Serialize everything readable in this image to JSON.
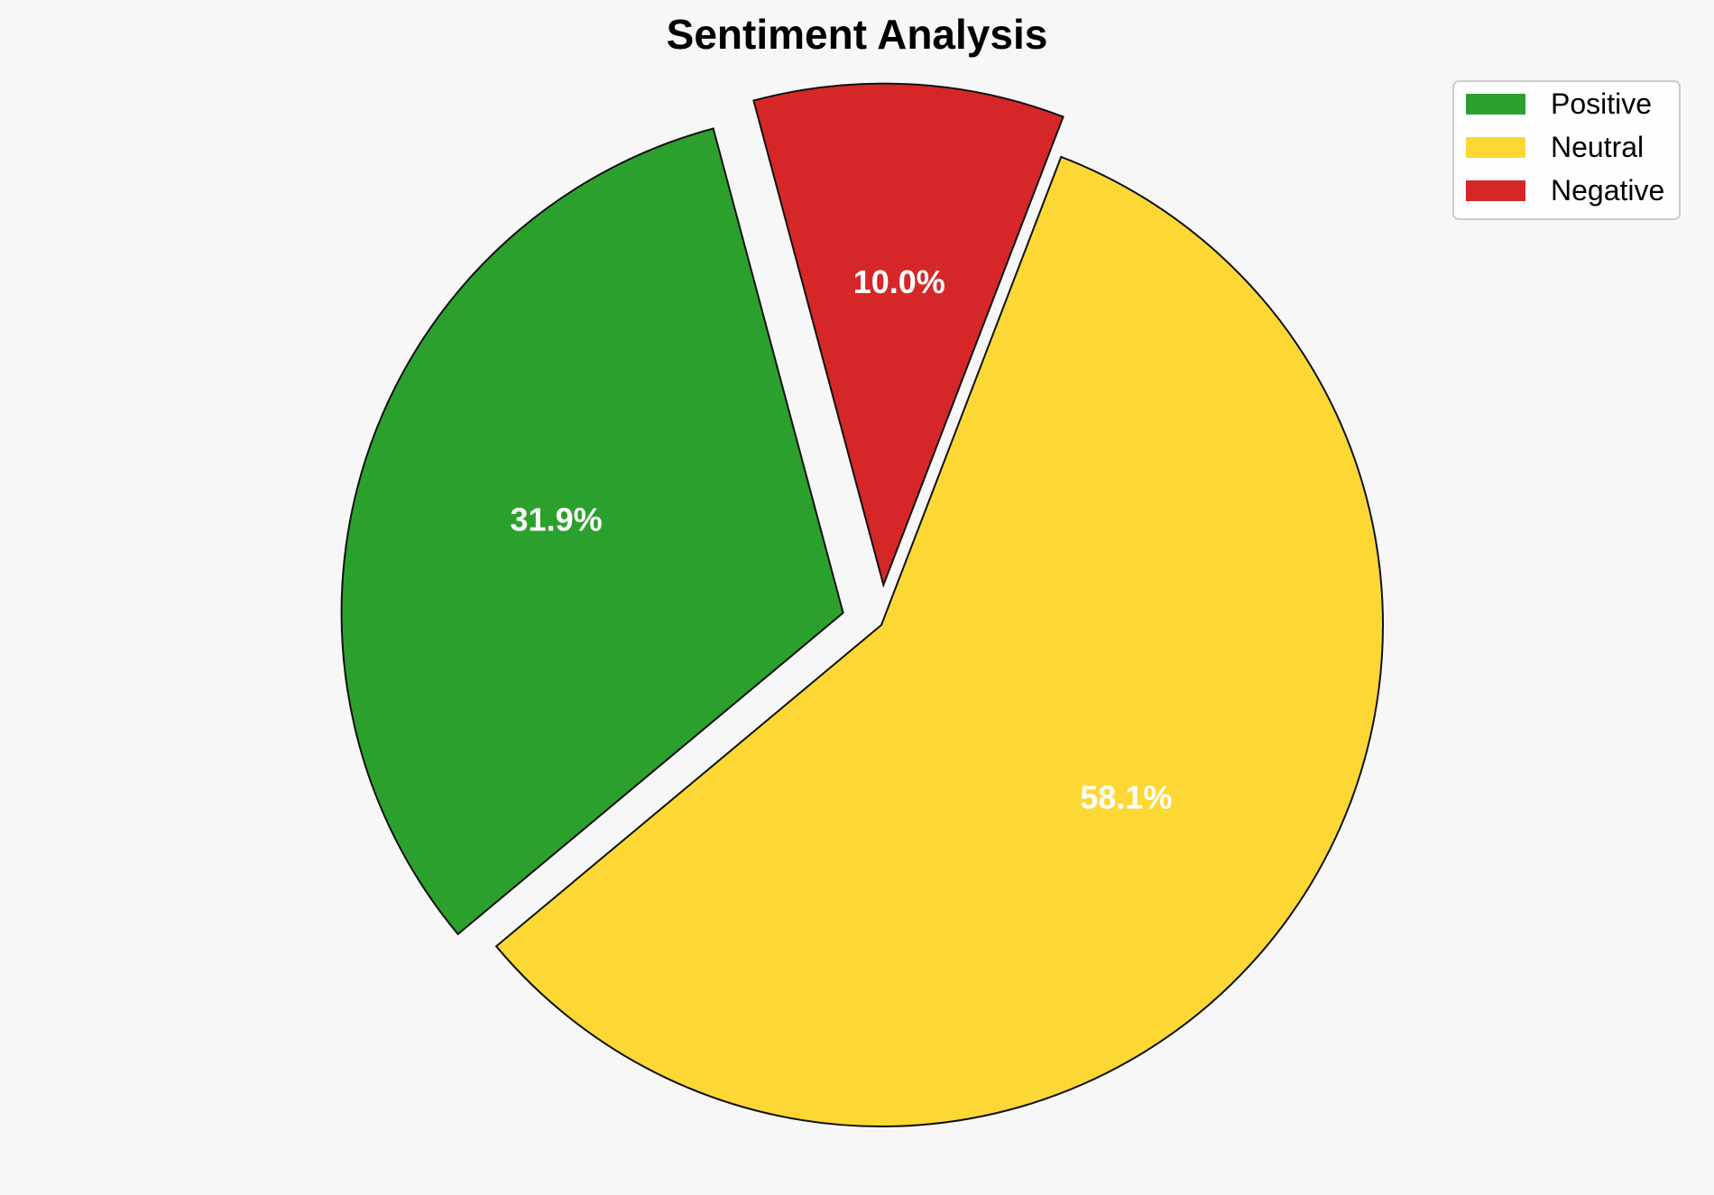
{
  "chart_data": {
    "type": "pie",
    "title": "Sentiment Analysis",
    "series": [
      {
        "name": "Positive",
        "value": 31.9,
        "label": "31.9%",
        "color": "#2ca02c",
        "explode": 0.08
      },
      {
        "name": "Neutral",
        "value": 58.1,
        "label": "58.1%",
        "color": "#fdd835",
        "explode": 0.0
      },
      {
        "name": "Negative",
        "value": 10.0,
        "label": "10.0%",
        "color": "#d62728",
        "explode": 0.08
      }
    ],
    "start_angle": 105,
    "direction": "counterclockwise",
    "legend": {
      "position": "top-right"
    }
  }
}
